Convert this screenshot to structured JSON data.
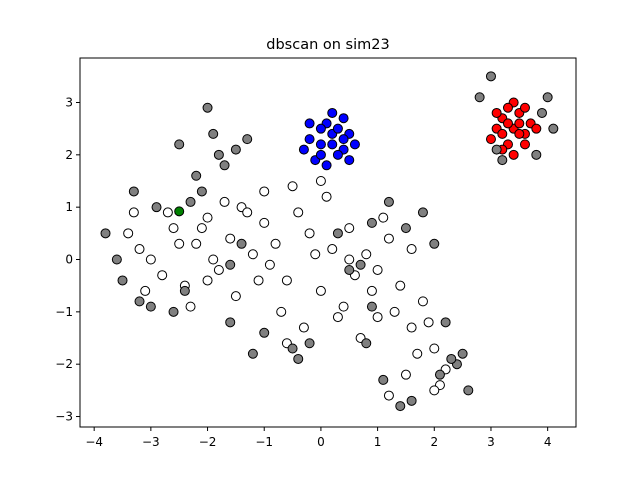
{
  "chart_data": {
    "type": "scatter",
    "title": "dbscan on sim23",
    "xlabel": "",
    "ylabel": "",
    "xlim": [
      -4.25,
      4.5
    ],
    "ylim": [
      -3.2,
      3.85
    ],
    "xticks": [
      "−4",
      "−3",
      "−2",
      "−1",
      "0",
      "1",
      "2",
      "3",
      "4"
    ],
    "yticks": [
      "−3",
      "−2",
      "−1",
      "0",
      "1",
      "2",
      "3"
    ],
    "grid": false,
    "legend": "none",
    "colors": {
      "noise": "#808080",
      "cluster_main": "#ffffff",
      "cluster_top": "#0000ff",
      "cluster_right": "#ff0000",
      "cluster_small": "#008000"
    },
    "series": [
      {
        "color_key": "cluster_main",
        "x": [
          -3.4,
          -3.2,
          -3.0,
          -2.8,
          -2.6,
          -2.4,
          -2.2,
          -2.0,
          -1.8,
          -1.6,
          -1.4,
          -1.2,
          -1.0,
          -0.8,
          -0.6,
          -0.4,
          -0.2,
          0.0,
          0.2,
          0.4,
          0.6,
          0.8,
          1.0,
          1.2,
          1.4,
          1.6,
          1.8,
          2.0,
          2.2,
          -3.1,
          -2.7,
          -2.3,
          -1.9,
          -1.5,
          -1.1,
          -0.7,
          -0.3,
          0.1,
          0.5,
          0.9,
          1.3,
          1.7,
          2.1,
          -2.5,
          -1.7,
          -0.9,
          -0.1,
          0.7,
          1.5,
          -3.3,
          -2.1,
          -1.3,
          -0.5,
          0.3,
          1.1,
          1.9,
          -1.0,
          0.0,
          1.0,
          2.0,
          -2.0,
          0.5,
          1.6,
          -0.6,
          1.2
        ],
        "y": [
          0.5,
          0.2,
          0.0,
          -0.3,
          0.6,
          -0.5,
          0.3,
          0.8,
          -0.2,
          0.4,
          1.0,
          0.1,
          0.7,
          0.3,
          -0.4,
          0.9,
          0.5,
          -0.6,
          0.2,
          -0.9,
          -0.3,
          0.1,
          -1.1,
          0.4,
          -0.5,
          -1.3,
          -0.8,
          -1.7,
          -2.1,
          -0.6,
          0.9,
          -0.9,
          0.0,
          -0.7,
          -0.4,
          -1.0,
          -1.3,
          1.2,
          0.6,
          -0.6,
          -1.0,
          -1.8,
          -2.4,
          0.3,
          1.1,
          -0.1,
          0.1,
          -1.5,
          -2.2,
          0.9,
          0.6,
          0.9,
          1.4,
          -1.1,
          0.8,
          -1.2,
          1.3,
          1.5,
          -0.2,
          -2.5,
          -0.4,
          0.0,
          0.2,
          -1.6,
          -2.6
        ]
      },
      {
        "color_key": "cluster_top",
        "x": [
          0.0,
          0.2,
          0.4,
          -0.2,
          0.1,
          0.3,
          0.5,
          -0.1,
          0.2,
          0.0,
          0.4,
          -0.3,
          0.6,
          0.1,
          0.3,
          -0.2,
          0.5,
          0.2,
          0.0,
          0.4
        ],
        "y": [
          2.2,
          2.4,
          2.1,
          2.3,
          2.6,
          2.0,
          2.4,
          1.9,
          2.2,
          2.5,
          2.7,
          2.1,
          2.2,
          1.8,
          2.5,
          2.6,
          1.9,
          2.8,
          2.0,
          2.3
        ]
      },
      {
        "color_key": "cluster_right",
        "x": [
          3.4,
          3.2,
          3.6,
          3.3,
          3.5,
          3.1,
          3.7,
          3.4,
          3.2,
          3.6,
          3.3,
          3.5,
          3.0,
          3.8,
          3.4,
          3.2,
          3.6,
          3.5,
          3.3,
          3.1
        ],
        "y": [
          2.5,
          2.7,
          2.4,
          2.2,
          2.8,
          2.5,
          2.6,
          3.0,
          2.1,
          2.2,
          2.9,
          2.4,
          2.3,
          2.5,
          2.0,
          2.4,
          2.9,
          2.6,
          2.6,
          2.8
        ]
      },
      {
        "color_key": "cluster_small",
        "x": [
          -2.5
        ],
        "y": [
          0.92
        ]
      },
      {
        "color_key": "noise",
        "x": [
          -3.8,
          -3.6,
          -3.5,
          -3.3,
          -3.0,
          -2.6,
          -2.2,
          -2.0,
          -1.9,
          -1.8,
          -1.7,
          -1.5,
          -1.3,
          -2.5,
          -2.3,
          -2.1,
          -1.6,
          -1.2,
          -0.4,
          -0.2,
          0.5,
          0.7,
          0.9,
          1.2,
          1.5,
          1.8,
          2.0,
          2.2,
          2.4,
          2.5,
          1.4,
          1.1,
          0.8,
          1.6,
          -3.2,
          -2.9,
          -2.4,
          -1.4,
          -1.0,
          2.1,
          2.3,
          2.6,
          2.8,
          3.0,
          3.2,
          3.8,
          4.0,
          4.1,
          3.9,
          3.1,
          -0.5,
          0.9,
          -1.6,
          0.3
        ],
        "y": [
          0.5,
          0.0,
          -0.4,
          1.3,
          -0.9,
          -1.0,
          1.6,
          2.9,
          2.4,
          2.0,
          1.8,
          2.1,
          2.3,
          2.2,
          1.1,
          1.3,
          -1.2,
          -1.8,
          -1.9,
          -1.6,
          -0.2,
          -0.1,
          0.7,
          1.1,
          0.6,
          0.9,
          0.3,
          -1.2,
          -2.0,
          -1.8,
          -2.8,
          -2.3,
          -1.6,
          -2.7,
          -0.8,
          1.0,
          -0.6,
          0.3,
          -1.4,
          -2.2,
          -1.9,
          -2.5,
          3.1,
          3.5,
          1.9,
          2.0,
          3.1,
          2.5,
          2.8,
          2.1,
          -1.7,
          -0.9,
          -0.1,
          0.5
        ]
      }
    ]
  }
}
